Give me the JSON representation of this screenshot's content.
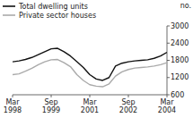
{
  "chart_data": {
    "type": "line",
    "ylabel": "no.",
    "categories": [
      "Mar\n1998",
      null,
      null,
      null,
      null,
      null,
      "Sep\n1999",
      null,
      null,
      null,
      null,
      null,
      "Mar\n2001",
      null,
      null,
      null,
      null,
      null,
      "Sep\n2002",
      null,
      null,
      null,
      null,
      null,
      "Mar\n2004"
    ],
    "series": [
      {
        "name": "Total dwelling units",
        "color": "#111111",
        "values": [
          1750,
          1780,
          1830,
          1900,
          2000,
          2100,
          2200,
          2220,
          2100,
          1950,
          1750,
          1550,
          1300,
          1150,
          1100,
          1200,
          1600,
          1700,
          1750,
          1780,
          1800,
          1820,
          1870,
          1950,
          2080
        ]
      },
      {
        "name": "Private sector houses",
        "color": "#aaaaaa",
        "values": [
          1300,
          1330,
          1420,
          1520,
          1650,
          1750,
          1820,
          1830,
          1720,
          1580,
          1300,
          1100,
          950,
          900,
          880,
          980,
          1250,
          1400,
          1480,
          1530,
          1550,
          1570,
          1600,
          1650,
          1720
        ]
      }
    ],
    "ylim": [
      600,
      3000
    ],
    "yticks": [
      600,
      1200,
      1800,
      2400,
      3000
    ],
    "grid": false,
    "legend": "upper left"
  }
}
